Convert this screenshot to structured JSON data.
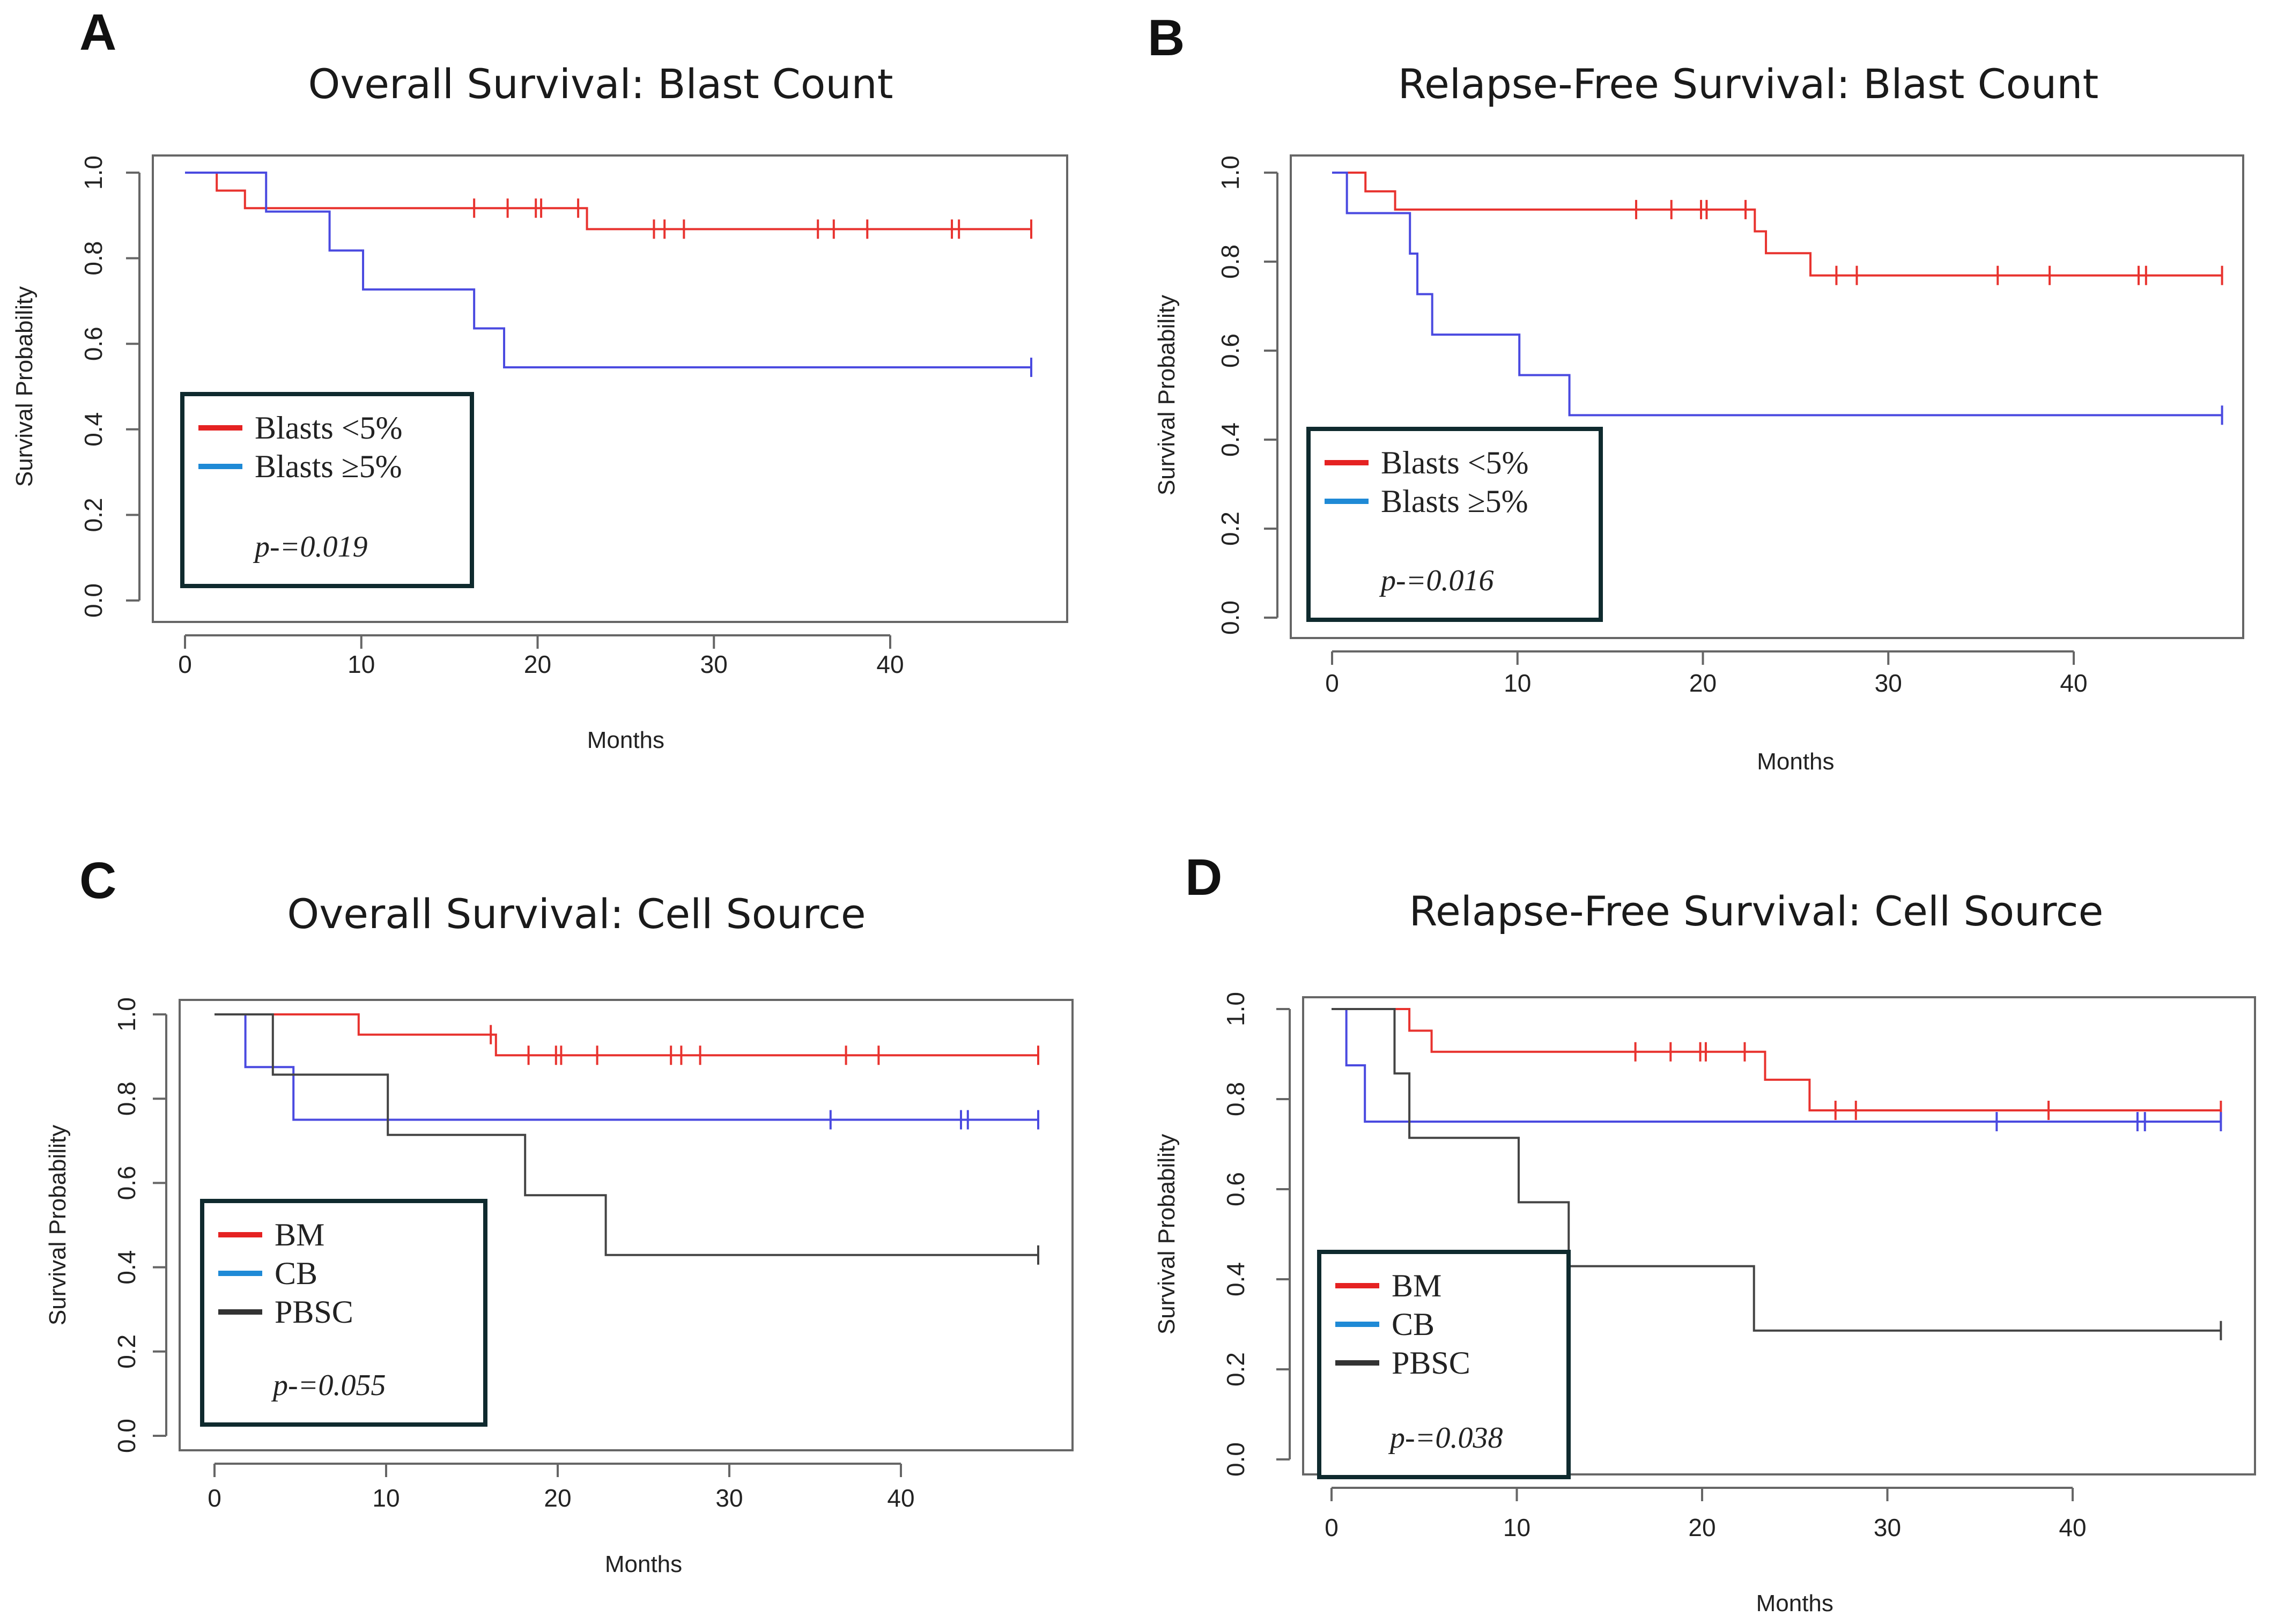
{
  "panels": [
    {
      "letter": "A",
      "title": "Overall Survival: Blast Count",
      "colors": {
        "Blasts <5%": "#e8332f",
        "Blasts ≥5%": "#4a4ae0"
      },
      "chart_data": {
        "type": "line",
        "title": "Overall Survival: Blast Count",
        "xlabel": "Months",
        "ylabel": "Survival Probability",
        "xlim": [
          0,
          50
        ],
        "ylim": [
          0,
          1
        ],
        "xticks": [
          0,
          10,
          20,
          30,
          40
        ],
        "yticks": [
          "0.0",
          "0.2",
          "0.4",
          "0.6",
          "0.8",
          "1.0"
        ],
        "series": [
          {
            "name": "Blasts <5%",
            "color": "#e8332f",
            "legend_color": "#e52222",
            "steps": [
              [
                0,
                1.0
              ],
              [
                1.8,
                0.958
              ],
              [
                3.4,
                0.917
              ],
              [
                22.8,
                0.868
              ],
              [
                48,
                0.868
              ]
            ],
            "censors": [
              [
                16.4,
                0.917
              ],
              [
                18.3,
                0.917
              ],
              [
                19.9,
                0.917
              ],
              [
                20.2,
                0.917
              ],
              [
                22.3,
                0.917
              ],
              [
                26.6,
                0.868
              ],
              [
                27.2,
                0.868
              ],
              [
                28.3,
                0.868
              ],
              [
                35.9,
                0.868
              ],
              [
                36.8,
                0.868
              ],
              [
                38.7,
                0.868
              ],
              [
                43.5,
                0.868
              ],
              [
                43.9,
                0.868
              ],
              [
                48,
                0.868
              ]
            ]
          },
          {
            "name": "Blasts ≥5%",
            "color": "#4a4ae0",
            "legend_color": "#1f8ad6",
            "steps": [
              [
                0,
                1.0
              ],
              [
                4.6,
                0.909
              ],
              [
                8.2,
                0.818
              ],
              [
                10.1,
                0.727
              ],
              [
                16.4,
                0.636
              ],
              [
                18.1,
                0.545
              ],
              [
                48,
                0.545
              ]
            ],
            "censors": [
              [
                48,
                0.545
              ]
            ]
          }
        ],
        "legend": {
          "entries": [
            "Blasts <5%",
            "Blasts ≥5%"
          ],
          "p_value": "p-=0.019",
          "placement": "bottom-left"
        }
      }
    },
    {
      "letter": "B",
      "title": "Relapse-Free Survival: Blast Count",
      "colors": {
        "Blasts <5%": "#e8332f",
        "Blasts ≥5%": "#4a4ae0"
      },
      "chart_data": {
        "type": "line",
        "title": "Relapse-Free Survival: Blast Count",
        "xlabel": "Months",
        "ylabel": "Survival Probability",
        "xlim": [
          0,
          50
        ],
        "ylim": [
          0,
          1
        ],
        "xticks": [
          0,
          10,
          20,
          30,
          40
        ],
        "yticks": [
          "0.0",
          "0.2",
          "0.4",
          "0.6",
          "0.8",
          "1.0"
        ],
        "series": [
          {
            "name": "Blasts <5%",
            "color": "#e8332f",
            "legend_color": "#e52222",
            "steps": [
              [
                0,
                1.0
              ],
              [
                1.8,
                0.958
              ],
              [
                3.4,
                0.917
              ],
              [
                22.8,
                0.868
              ],
              [
                23.4,
                0.819
              ],
              [
                25.8,
                0.769
              ],
              [
                48,
                0.769
              ]
            ],
            "censors": [
              [
                16.4,
                0.917
              ],
              [
                18.3,
                0.917
              ],
              [
                19.9,
                0.917
              ],
              [
                20.2,
                0.917
              ],
              [
                22.3,
                0.917
              ],
              [
                27.2,
                0.769
              ],
              [
                28.3,
                0.769
              ],
              [
                35.9,
                0.769
              ],
              [
                38.7,
                0.769
              ],
              [
                43.5,
                0.769
              ],
              [
                43.9,
                0.769
              ],
              [
                48,
                0.769
              ]
            ]
          },
          {
            "name": "Blasts ≥5%",
            "color": "#4a4ae0",
            "legend_color": "#1f8ad6",
            "steps": [
              [
                0,
                1.0
              ],
              [
                0.8,
                0.909
              ],
              [
                4.2,
                0.818
              ],
              [
                4.6,
                0.727
              ],
              [
                5.4,
                0.636
              ],
              [
                10.1,
                0.545
              ],
              [
                12.8,
                0.455
              ],
              [
                48,
                0.455
              ]
            ],
            "censors": [
              [
                48,
                0.455
              ]
            ]
          }
        ],
        "legend": {
          "entries": [
            "Blasts <5%",
            "Blasts ≥5%"
          ],
          "p_value": "p-=0.016",
          "placement": "bottom-left"
        }
      }
    },
    {
      "letter": "C",
      "title": "Overall Survival: Cell Source",
      "colors": {
        "BM": "#e8332f",
        "CB": "#4a4ae0",
        "PBSC": "#444444"
      },
      "chart_data": {
        "type": "line",
        "title": "Overall Survival: Cell Source",
        "xlabel": "Months",
        "ylabel": "Survival Probability",
        "xlim": [
          0,
          50
        ],
        "ylim": [
          0,
          1
        ],
        "xticks": [
          0,
          10,
          20,
          30,
          40
        ],
        "yticks": [
          "0.0",
          "0.2",
          "0.4",
          "0.6",
          "0.8",
          "1.0"
        ],
        "series": [
          {
            "name": "BM",
            "color": "#e8332f",
            "legend_color": "#e52222",
            "steps": [
              [
                0,
                1.0
              ],
              [
                8.4,
                0.952
              ],
              [
                16.4,
                0.903
              ],
              [
                48,
                0.903
              ]
            ],
            "censors": [
              [
                16.1,
                0.952
              ],
              [
                18.3,
                0.903
              ],
              [
                19.9,
                0.903
              ],
              [
                20.2,
                0.903
              ],
              [
                22.3,
                0.903
              ],
              [
                26.6,
                0.903
              ],
              [
                27.2,
                0.903
              ],
              [
                28.3,
                0.903
              ],
              [
                36.8,
                0.903
              ],
              [
                38.7,
                0.903
              ],
              [
                48,
                0.903
              ]
            ]
          },
          {
            "name": "CB",
            "color": "#4a4ae0",
            "legend_color": "#1f8ad6",
            "steps": [
              [
                0,
                1.0
              ],
              [
                1.8,
                0.875
              ],
              [
                4.6,
                0.75
              ],
              [
                48,
                0.75
              ]
            ],
            "censors": [
              [
                35.9,
                0.75
              ],
              [
                43.5,
                0.75
              ],
              [
                43.9,
                0.75
              ],
              [
                48,
                0.75
              ]
            ]
          },
          {
            "name": "PBSC",
            "color": "#444444",
            "legend_color": "#333333",
            "steps": [
              [
                0,
                1.0
              ],
              [
                3.4,
                0.857
              ],
              [
                10.1,
                0.714
              ],
              [
                18.1,
                0.571
              ],
              [
                22.8,
                0.429
              ],
              [
                48,
                0.429
              ]
            ],
            "censors": [
              [
                48,
                0.429
              ]
            ]
          }
        ],
        "legend": {
          "entries": [
            "BM",
            "CB",
            "PBSC"
          ],
          "p_value": "p-=0.055",
          "placement": "bottom-left"
        }
      }
    },
    {
      "letter": "D",
      "title": "Relapse-Free Survival: Cell Source",
      "colors": {
        "BM": "#e8332f",
        "CB": "#4a4ae0",
        "PBSC": "#444444"
      },
      "chart_data": {
        "type": "line",
        "title": "Relapse-Free Survival: Cell Source",
        "xlabel": "Months",
        "ylabel": "Survival Probability",
        "xlim": [
          0,
          50
        ],
        "ylim": [
          0,
          1
        ],
        "xticks": [
          0,
          10,
          20,
          30,
          40
        ],
        "yticks": [
          "0.0",
          "0.2",
          "0.4",
          "0.6",
          "0.8",
          "1.0"
        ],
        "series": [
          {
            "name": "BM",
            "color": "#e8332f",
            "legend_color": "#e52222",
            "steps": [
              [
                0,
                1.0
              ],
              [
                4.2,
                0.952
              ],
              [
                5.4,
                0.905
              ],
              [
                23.4,
                0.843
              ],
              [
                25.8,
                0.775
              ],
              [
                48,
                0.775
              ]
            ],
            "censors": [
              [
                16.4,
                0.905
              ],
              [
                18.3,
                0.905
              ],
              [
                19.9,
                0.905
              ],
              [
                20.2,
                0.905
              ],
              [
                22.3,
                0.905
              ],
              [
                27.2,
                0.775
              ],
              [
                28.3,
                0.775
              ],
              [
                38.7,
                0.775
              ],
              [
                48,
                0.775
              ]
            ]
          },
          {
            "name": "CB",
            "color": "#4a4ae0",
            "legend_color": "#1f8ad6",
            "steps": [
              [
                0,
                1.0
              ],
              [
                0.8,
                0.875
              ],
              [
                1.8,
                0.75
              ],
              [
                48,
                0.75
              ]
            ],
            "censors": [
              [
                35.9,
                0.75
              ],
              [
                43.5,
                0.75
              ],
              [
                43.9,
                0.75
              ],
              [
                48,
                0.75
              ]
            ]
          },
          {
            "name": "PBSC",
            "color": "#444444",
            "legend_color": "#333333",
            "steps": [
              [
                0,
                1.0
              ],
              [
                3.4,
                0.857
              ],
              [
                4.2,
                0.714
              ],
              [
                10.1,
                0.571
              ],
              [
                12.8,
                0.429
              ],
              [
                22.8,
                0.286
              ],
              [
                48,
                0.286
              ]
            ],
            "censors": [
              [
                48,
                0.286
              ]
            ]
          }
        ],
        "legend": {
          "entries": [
            "BM",
            "CB",
            "PBSC"
          ],
          "p_value": "p-=0.038",
          "placement": "bottom-left"
        }
      }
    }
  ]
}
